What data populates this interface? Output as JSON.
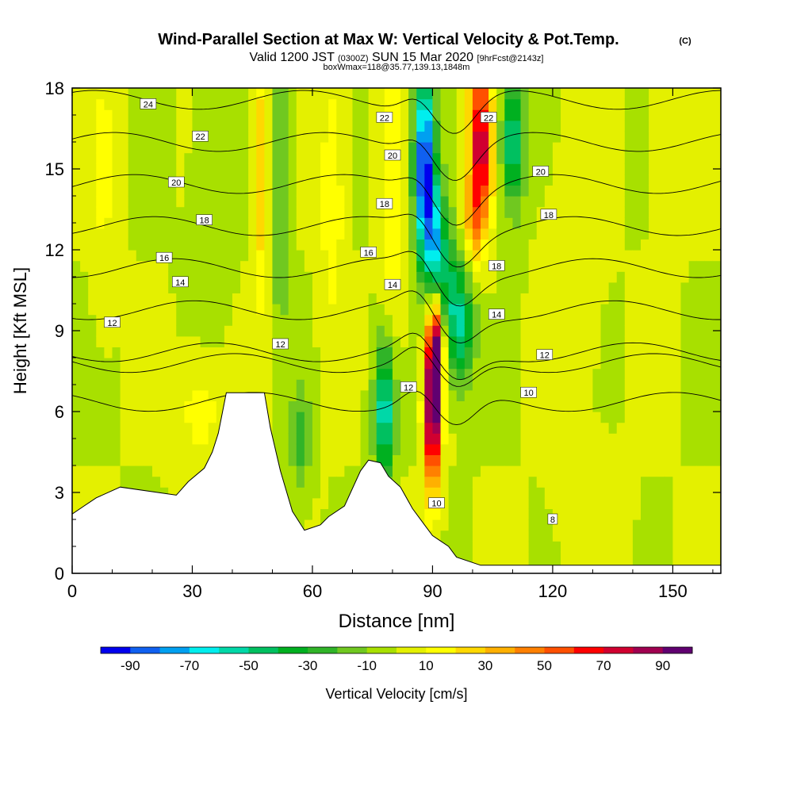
{
  "chart_data": {
    "type": "heatmap",
    "title": "Wind-Parallel Section at Max W: Vertical Velocity & Pot.Temp.",
    "title_mark": "(C)",
    "subtitle_prefix": "Valid 1200 JST",
    "subtitle_small1": "(0300Z)",
    "subtitle_main": "SUN 15 Mar 2020",
    "subtitle_small2": "[9hrFcst@2143z]",
    "subtitle2": "boxWmax=118@35.77,139.13,1848m",
    "xlabel": "Distance [nm]",
    "ylabel": "Height [Kft MSL]",
    "xlim": [
      0,
      162
    ],
    "ylim": [
      0,
      18
    ],
    "x_ticks": [
      0,
      30,
      60,
      90,
      120,
      150
    ],
    "y_ticks": [
      0,
      3,
      6,
      9,
      12,
      15,
      18
    ],
    "colorbar": {
      "label": "Vertical Velocity [cm/s]",
      "tick_labels": [
        "-90",
        "-70",
        "-50",
        "-30",
        "-10",
        "10",
        "30",
        "50",
        "70",
        "90"
      ],
      "bins": [
        -100,
        -90,
        -80,
        -70,
        -60,
        -50,
        -40,
        -30,
        -20,
        -10,
        0,
        10,
        20,
        30,
        40,
        50,
        60,
        70,
        80,
        90,
        100
      ],
      "colors": [
        "#0000ee",
        "#1060f0",
        "#00a0f0",
        "#00eeee",
        "#00d8a8",
        "#00c060",
        "#00b020",
        "#30b428",
        "#70c820",
        "#a8e000",
        "#e4f000",
        "#ffff00",
        "#ffd800",
        "#ffb000",
        "#ff8000",
        "#ff5000",
        "#ff0000",
        "#d00030",
        "#a00050",
        "#600070"
      ]
    },
    "terrain": [
      [
        0,
        2.2
      ],
      [
        3,
        2.5
      ],
      [
        6,
        2.8
      ],
      [
        12,
        3.2
      ],
      [
        26,
        2.9
      ],
      [
        29,
        3.4
      ],
      [
        33,
        3.9
      ],
      [
        35,
        4.5
      ],
      [
        36.5,
        5.2
      ],
      [
        38.5,
        6.7
      ],
      [
        48,
        6.7
      ],
      [
        49.5,
        5.4
      ],
      [
        52,
        3.8
      ],
      [
        55,
        2.3
      ],
      [
        58,
        1.6
      ],
      [
        62,
        1.8
      ],
      [
        64,
        2.1
      ],
      [
        68,
        2.5
      ],
      [
        72,
        3.8
      ],
      [
        74,
        4.2
      ],
      [
        77,
        4.1
      ],
      [
        79,
        3.6
      ],
      [
        82,
        3.2
      ],
      [
        85,
        2.4
      ],
      [
        88,
        1.8
      ],
      [
        90,
        1.4
      ],
      [
        92,
        1.2
      ],
      [
        94,
        1.0
      ],
      [
        96,
        0.6
      ],
      [
        102,
        0.3
      ],
      [
        162,
        0.3
      ]
    ],
    "velocity_features": [
      {
        "x": 88,
        "y": 15,
        "sx": 2.5,
        "sy": 3.5,
        "w": -100
      },
      {
        "x": 91,
        "y": 12,
        "sx": 2.5,
        "sy": 2.5,
        "w": -60
      },
      {
        "x": 95,
        "y": 10,
        "sx": 3,
        "sy": 2.5,
        "w": -40
      },
      {
        "x": 98,
        "y": 9,
        "sx": 3,
        "sy": 2,
        "w": -35
      },
      {
        "x": 78,
        "y": 6,
        "sx": 2.5,
        "sy": 2.5,
        "w": -60
      },
      {
        "x": 57,
        "y": 5,
        "sx": 2.5,
        "sy": 2,
        "w": -25
      },
      {
        "x": 110,
        "y": 16,
        "sx": 3,
        "sy": 2.5,
        "w": -50
      },
      {
        "x": 52,
        "y": 14,
        "sx": 2,
        "sy": 5,
        "w": -25
      },
      {
        "x": 90,
        "y": 6,
        "sx": 2,
        "sy": 3,
        "w": 100
      },
      {
        "x": 91,
        "y": 8.5,
        "sx": 2,
        "sy": 2,
        "w": 75
      },
      {
        "x": 102,
        "y": 16,
        "sx": 3,
        "sy": 3,
        "w": 80
      },
      {
        "x": 100,
        "y": 13,
        "sx": 2.5,
        "sy": 1.5,
        "w": 30
      },
      {
        "x": 47,
        "y": 15,
        "sx": 2,
        "sy": 5,
        "w": 28
      },
      {
        "x": 80,
        "y": 14,
        "sx": 3,
        "sy": 5,
        "w": 20
      },
      {
        "x": 65,
        "y": 14,
        "sx": 3,
        "sy": 5,
        "w": 18
      },
      {
        "x": 32,
        "y": 6,
        "sx": 6,
        "sy": 2,
        "w": 15
      },
      {
        "x": 8,
        "y": 15,
        "sx": 3,
        "sy": 5,
        "w": 12
      },
      {
        "x": 148,
        "y": 14,
        "sx": 3,
        "sy": 5,
        "w": 10
      },
      {
        "x": 125,
        "y": 11,
        "sx": 6,
        "sy": 5,
        "w": 8
      },
      {
        "x": 130,
        "y": 2,
        "sx": 8,
        "sy": 2.5,
        "w": 6
      },
      {
        "x": 35,
        "y": 14,
        "sx": 5,
        "sy": 4,
        "w": -8
      }
    ],
    "isentrope_levels": [
      8,
      10,
      12,
      14,
      16,
      18,
      20,
      22,
      24
    ],
    "contour_labels": [
      {
        "x": 19,
        "y": 17.4,
        "label": "24"
      },
      {
        "x": 32,
        "y": 16.2,
        "label": "22"
      },
      {
        "x": 26,
        "y": 14.5,
        "label": "20"
      },
      {
        "x": 33,
        "y": 13.1,
        "label": "18"
      },
      {
        "x": 23,
        "y": 11.7,
        "label": "16"
      },
      {
        "x": 27,
        "y": 10.8,
        "label": "14"
      },
      {
        "x": 10,
        "y": 9.3,
        "label": "12"
      },
      {
        "x": 78,
        "y": 16.9,
        "label": "22"
      },
      {
        "x": 80,
        "y": 15.5,
        "label": "20"
      },
      {
        "x": 78,
        "y": 13.7,
        "label": "18"
      },
      {
        "x": 74,
        "y": 11.9,
        "label": "16"
      },
      {
        "x": 80,
        "y": 10.7,
        "label": "14"
      },
      {
        "x": 104,
        "y": 16.9,
        "label": "22"
      },
      {
        "x": 117,
        "y": 14.9,
        "label": "20"
      },
      {
        "x": 119,
        "y": 13.3,
        "label": "18"
      },
      {
        "x": 106,
        "y": 11.4,
        "label": "18"
      },
      {
        "x": 106,
        "y": 9.6,
        "label": "14"
      },
      {
        "x": 118,
        "y": 8.1,
        "label": "12"
      },
      {
        "x": 114,
        "y": 6.7,
        "label": "10"
      },
      {
        "x": 52,
        "y": 8.5,
        "label": "12"
      },
      {
        "x": 84,
        "y": 6.9,
        "label": "12"
      },
      {
        "x": 91,
        "y": 2.6,
        "label": "10"
      },
      {
        "x": 120,
        "y": 2.0,
        "label": "8"
      }
    ]
  }
}
